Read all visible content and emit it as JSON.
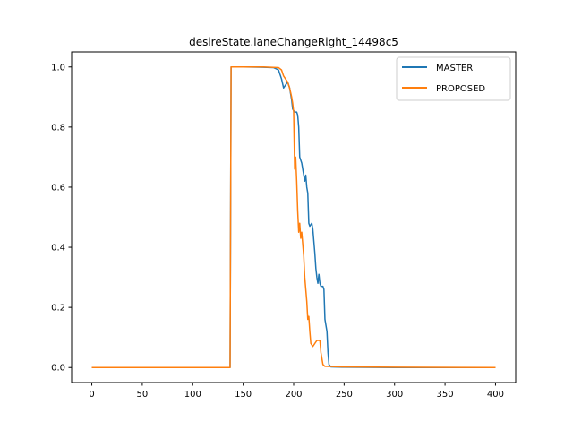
{
  "chart_data": {
    "type": "line",
    "title": "desireState.laneChangeRight_14498c5",
    "xlabel": "",
    "ylabel": "",
    "xlim": [
      -20,
      420
    ],
    "ylim": [
      -0.05,
      1.05
    ],
    "xticks": [
      0,
      50,
      100,
      150,
      200,
      250,
      300,
      350,
      400
    ],
    "yticks": [
      0.0,
      0.2,
      0.4,
      0.6,
      0.8,
      1.0
    ],
    "xtick_labels": [
      "0",
      "50",
      "100",
      "150",
      "200",
      "250",
      "300",
      "350",
      "400"
    ],
    "ytick_labels": [
      "0.0",
      "0.2",
      "0.4",
      "0.6",
      "0.8",
      "1.0"
    ],
    "grid": false,
    "legend_position": "top-right",
    "series": [
      {
        "name": "MASTER",
        "color": "#1f77b4",
        "points": [
          [
            0,
            0.0
          ],
          [
            137,
            0.0
          ],
          [
            138,
            1.0
          ],
          [
            150,
            1.0
          ],
          [
            170,
            0.999
          ],
          [
            180,
            0.998
          ],
          [
            185,
            0.99
          ],
          [
            188,
            0.96
          ],
          [
            190,
            0.93
          ],
          [
            192,
            0.94
          ],
          [
            194,
            0.95
          ],
          [
            196,
            0.93
          ],
          [
            198,
            0.89
          ],
          [
            199,
            0.86
          ],
          [
            201,
            0.85
          ],
          [
            203,
            0.85
          ],
          [
            204,
            0.84
          ],
          [
            205,
            0.8
          ],
          [
            206,
            0.7
          ],
          [
            208,
            0.68
          ],
          [
            209,
            0.66
          ],
          [
            211,
            0.62
          ],
          [
            212,
            0.64
          ],
          [
            213,
            0.6
          ],
          [
            214,
            0.58
          ],
          [
            215,
            0.48
          ],
          [
            216,
            0.47
          ],
          [
            218,
            0.48
          ],
          [
            219,
            0.46
          ],
          [
            220,
            0.42
          ],
          [
            221,
            0.38
          ],
          [
            222,
            0.33
          ],
          [
            223,
            0.3
          ],
          [
            224,
            0.28
          ],
          [
            225,
            0.31
          ],
          [
            226,
            0.28
          ],
          [
            227,
            0.27
          ],
          [
            229,
            0.27
          ],
          [
            230,
            0.26
          ],
          [
            231,
            0.16
          ],
          [
            232,
            0.14
          ],
          [
            233,
            0.12
          ],
          [
            234,
            0.05
          ],
          [
            235,
            0.01
          ],
          [
            237,
            0.002
          ],
          [
            250,
            0.001
          ],
          [
            300,
            0.0
          ],
          [
            400,
            0.0
          ]
        ]
      },
      {
        "name": "PROPOSED",
        "color": "#ff7f0e",
        "points": [
          [
            0,
            0.0
          ],
          [
            137,
            0.0
          ],
          [
            138,
            1.0
          ],
          [
            150,
            1.0
          ],
          [
            170,
            1.0
          ],
          [
            185,
            0.998
          ],
          [
            188,
            0.99
          ],
          [
            190,
            0.97
          ],
          [
            192,
            0.96
          ],
          [
            194,
            0.95
          ],
          [
            196,
            0.93
          ],
          [
            198,
            0.9
          ],
          [
            199,
            0.88
          ],
          [
            200,
            0.85
          ],
          [
            201,
            0.66
          ],
          [
            202,
            0.7
          ],
          [
            203,
            0.62
          ],
          [
            204,
            0.52
          ],
          [
            205,
            0.45
          ],
          [
            206,
            0.48
          ],
          [
            207,
            0.43
          ],
          [
            208,
            0.45
          ],
          [
            209,
            0.41
          ],
          [
            210,
            0.37
          ],
          [
            211,
            0.3
          ],
          [
            212,
            0.26
          ],
          [
            213,
            0.22
          ],
          [
            214,
            0.16
          ],
          [
            215,
            0.17
          ],
          [
            216,
            0.12
          ],
          [
            217,
            0.08
          ],
          [
            219,
            0.07
          ],
          [
            221,
            0.08
          ],
          [
            223,
            0.09
          ],
          [
            226,
            0.09
          ],
          [
            227,
            0.05
          ],
          [
            228,
            0.03
          ],
          [
            229,
            0.01
          ],
          [
            231,
            0.004
          ],
          [
            250,
            0.002
          ],
          [
            300,
            0.001
          ],
          [
            400,
            0.0
          ]
        ]
      }
    ]
  }
}
